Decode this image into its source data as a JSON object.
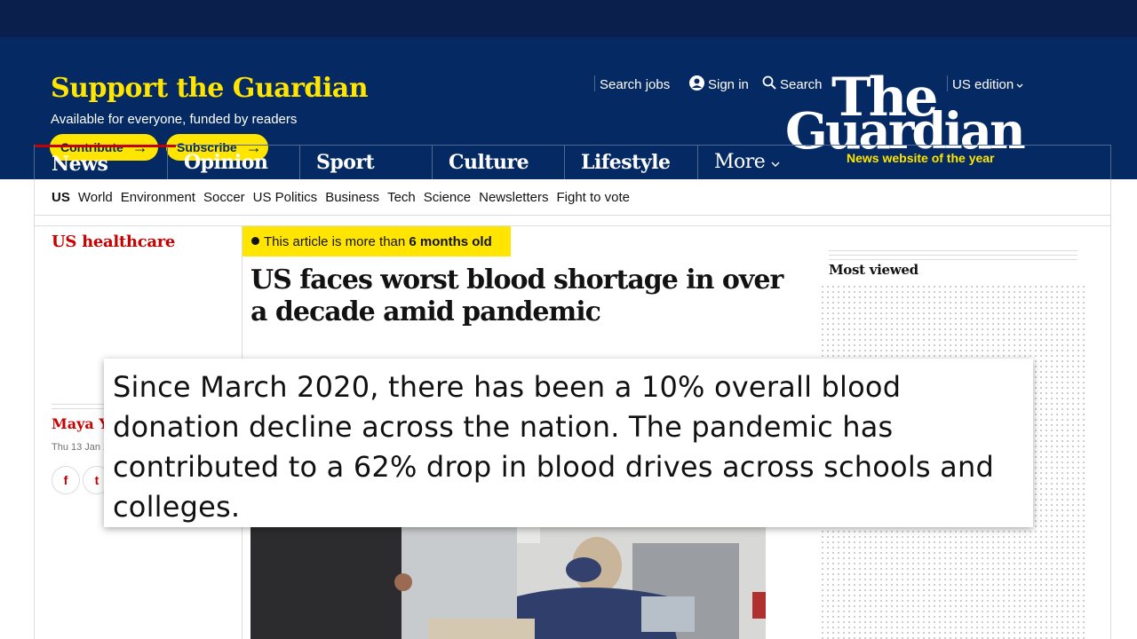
{
  "masthead": {
    "support_title": "Support the Guardian",
    "support_subtitle": "Available for everyone, funded by readers",
    "contribute_label": "Contribute",
    "subscribe_label": "Subscribe",
    "arrow_glyph": "→",
    "utility": {
      "search_jobs": "Search jobs",
      "sign_in": "Sign in",
      "search": "Search",
      "edition": "US edition"
    },
    "logo_line1": "The",
    "logo_line2": "Guardian",
    "logo_tagline": "News website of the year",
    "colors": {
      "brand_blue": "#052962",
      "accent_yellow": "#ffe500",
      "news_red": "#c70000"
    }
  },
  "pillars": [
    {
      "label": "News",
      "active": true
    },
    {
      "label": "Opinion"
    },
    {
      "label": "Sport"
    },
    {
      "label": "Culture"
    },
    {
      "label": "Lifestyle"
    }
  ],
  "more_label": "More",
  "subnav": [
    "US",
    "World",
    "Environment",
    "Soccer",
    "US Politics",
    "Business",
    "Tech",
    "Science",
    "Newsletters",
    "Fight to vote"
  ],
  "article": {
    "section": "US healthcare",
    "age_badge_prefix": "This article is more than",
    "age_badge_bold": "6 months old",
    "headline": "US faces worst blood shortage in over a decade amid pandemic",
    "author_partial": "Maya Ya",
    "date_partial": "Thu 13 Jan 2",
    "share_facebook": "f",
    "share_twitter": "t"
  },
  "sidebar": {
    "most_viewed": "Most viewed"
  },
  "caption": {
    "text": "Since March 2020, there has been a 10% overall blood donation decline across the nation. The pandemic has contributed to a 62% drop in blood drives across schools and colleges."
  },
  "icons": [
    "user-icon",
    "search-icon",
    "chevron-down-icon",
    "arrow-right-icon",
    "clock-icon",
    "facebook-icon",
    "twitter-icon"
  ]
}
